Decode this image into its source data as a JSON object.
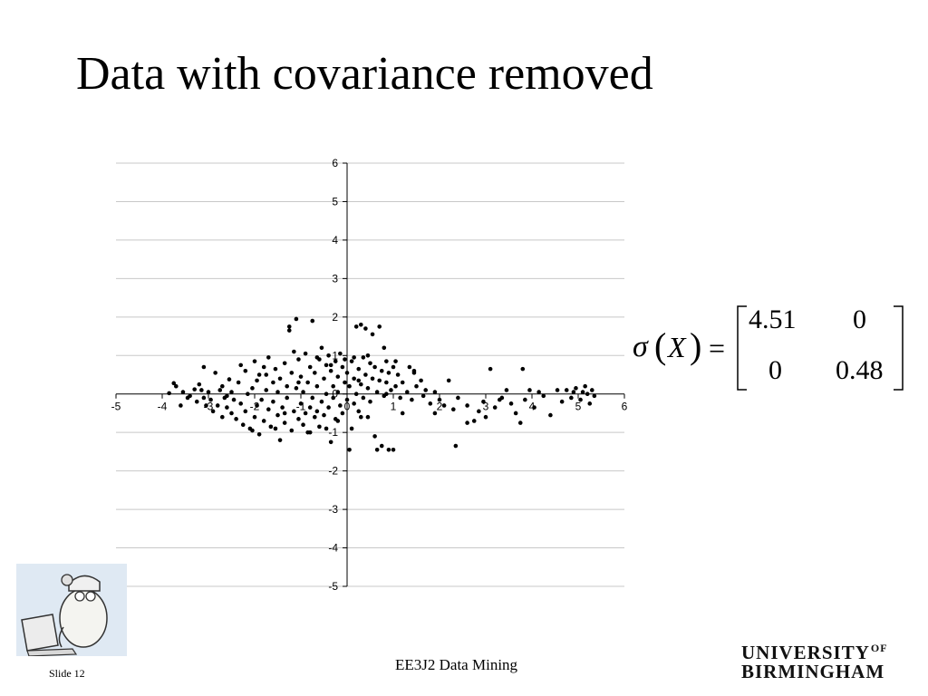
{
  "slide": {
    "title": "Data with covariance removed",
    "footer_center": "EE3J2 Data Mining",
    "slide_number": "Slide 12",
    "logo_line1": "UNIVERSITY",
    "logo_of": "OF",
    "logo_line2": "BIRMINGHAM"
  },
  "equation": {
    "function": "σ",
    "variable": "X",
    "equals": "=",
    "matrix": [
      [
        "4.51",
        "0"
      ],
      [
        "0",
        "0.48"
      ]
    ]
  },
  "chart_data": {
    "type": "scatter",
    "title": "",
    "xlabel": "",
    "ylabel": "",
    "xlim": [
      -5,
      6
    ],
    "ylim": [
      -5,
      6
    ],
    "xticks": [
      -5,
      -4,
      -3,
      -2,
      -1,
      0,
      1,
      2,
      3,
      4,
      5,
      6
    ],
    "yticks": [
      -5,
      -4,
      -3,
      -2,
      -1,
      0,
      1,
      2,
      3,
      4,
      5,
      6
    ],
    "grid": "horizontal",
    "marker_color": "#000000",
    "points": [
      [
        -3.85,
        0.02
      ],
      [
        -3.75,
        0.28
      ],
      [
        -3.7,
        0.2
      ],
      [
        -3.55,
        0.05
      ],
      [
        -3.45,
        -0.1
      ],
      [
        -3.4,
        -0.05
      ],
      [
        -3.3,
        0.12
      ],
      [
        -3.25,
        -0.2
      ],
      [
        -3.2,
        0.25
      ],
      [
        -3.15,
        0.1
      ],
      [
        -3.1,
        -0.1
      ],
      [
        -3.05,
        -0.3
      ],
      [
        -3.0,
        0.05
      ],
      [
        -2.95,
        -0.15
      ],
      [
        -2.9,
        -0.45
      ],
      [
        -2.85,
        0.55
      ],
      [
        -2.8,
        -0.3
      ],
      [
        -2.75,
        0.1
      ],
      [
        -2.7,
        -0.6
      ],
      [
        -2.7,
        0.2
      ],
      [
        -2.65,
        -0.1
      ],
      [
        -2.6,
        -0.35
      ],
      [
        -2.55,
        0.38
      ],
      [
        -2.5,
        -0.5
      ],
      [
        -2.5,
        0.05
      ],
      [
        -2.45,
        -0.15
      ],
      [
        -2.4,
        -0.65
      ],
      [
        -2.35,
        0.3
      ],
      [
        -2.3,
        -0.25
      ],
      [
        -2.25,
        -0.8
      ],
      [
        -2.2,
        0.6
      ],
      [
        -2.2,
        -0.45
      ],
      [
        -2.15,
        0.0
      ],
      [
        -2.1,
        -0.9
      ],
      [
        -2.05,
        0.15
      ],
      [
        -2.0,
        -0.6
      ],
      [
        -2.0,
        0.85
      ],
      [
        -1.95,
        -0.3
      ],
      [
        -1.9,
        0.5
      ],
      [
        -1.9,
        -1.05
      ],
      [
        -1.85,
        -0.15
      ],
      [
        -1.8,
        0.7
      ],
      [
        -1.8,
        -0.7
      ],
      [
        -1.75,
        0.1
      ],
      [
        -1.7,
        -0.4
      ],
      [
        -1.7,
        0.95
      ],
      [
        -1.65,
        -0.85
      ],
      [
        -1.6,
        0.3
      ],
      [
        -1.6,
        -0.2
      ],
      [
        -1.55,
        0.65
      ],
      [
        -1.5,
        -0.55
      ],
      [
        -1.5,
        0.05
      ],
      [
        -1.45,
        -1.2
      ],
      [
        -1.45,
        0.4
      ],
      [
        -1.4,
        -0.35
      ],
      [
        -1.35,
        0.8
      ],
      [
        -1.35,
        -0.75
      ],
      [
        -1.3,
        0.2
      ],
      [
        -1.3,
        -0.1
      ],
      [
        -1.25,
        1.65
      ],
      [
        -1.25,
        1.75
      ],
      [
        -1.2,
        -0.95
      ],
      [
        -1.2,
        0.55
      ],
      [
        -1.15,
        -0.45
      ],
      [
        -1.1,
        1.95
      ],
      [
        -1.1,
        0.15
      ],
      [
        -1.05,
        -0.65
      ],
      [
        -1.05,
        0.9
      ],
      [
        -1.0,
        -0.25
      ],
      [
        -1.0,
        0.45
      ],
      [
        -0.95,
        -0.8
      ],
      [
        -0.95,
        0.05
      ],
      [
        -0.9,
        1.05
      ],
      [
        -0.9,
        -0.5
      ],
      [
        -0.85,
        0.3
      ],
      [
        -0.85,
        -1.0
      ],
      [
        -0.8,
        0.7
      ],
      [
        -0.8,
        -0.35
      ],
      [
        -0.75,
        1.9
      ],
      [
        -0.75,
        -0.1
      ],
      [
        -0.7,
        -0.6
      ],
      [
        -0.7,
        0.55
      ],
      [
        -0.65,
        0.2
      ],
      [
        -0.65,
        -0.45
      ],
      [
        -0.6,
        0.9
      ],
      [
        -0.6,
        -0.85
      ],
      [
        -0.55,
        -0.2
      ],
      [
        -0.55,
        1.2
      ],
      [
        -0.5,
        0.4
      ],
      [
        -0.5,
        -0.55
      ],
      [
        -0.45,
        0.75
      ],
      [
        -0.45,
        0.0
      ],
      [
        -0.4,
        -0.35
      ],
      [
        -0.4,
        1.0
      ],
      [
        -0.35,
        0.6
      ],
      [
        -0.35,
        -1.25
      ],
      [
        -0.3,
        0.2
      ],
      [
        -0.3,
        -0.1
      ],
      [
        -0.25,
        0.85
      ],
      [
        -0.25,
        -0.65
      ],
      [
        -0.2,
        0.45
      ],
      [
        -0.2,
        0.05
      ],
      [
        -0.15,
        1.05
      ],
      [
        -0.15,
        -0.3
      ],
      [
        -0.1,
        0.7
      ],
      [
        -0.1,
        -0.5
      ],
      [
        -0.05,
        0.3
      ],
      [
        -0.05,
        0.9
      ],
      [
        0.0,
        -0.15
      ],
      [
        0.0,
        0.55
      ],
      [
        0.05,
        -1.45
      ],
      [
        0.05,
        0.2
      ],
      [
        0.1,
        0.85
      ],
      [
        0.1,
        -0.9
      ],
      [
        0.15,
        0.4
      ],
      [
        0.15,
        -0.25
      ],
      [
        0.2,
        1.75
      ],
      [
        0.2,
        0.0
      ],
      [
        0.25,
        0.65
      ],
      [
        0.25,
        -0.45
      ],
      [
        0.3,
        1.8
      ],
      [
        0.3,
        0.25
      ],
      [
        0.35,
        -0.1
      ],
      [
        0.35,
        0.95
      ],
      [
        0.4,
        1.7
      ],
      [
        0.4,
        0.5
      ],
      [
        0.45,
        -0.6
      ],
      [
        0.45,
        0.15
      ],
      [
        0.5,
        0.8
      ],
      [
        0.5,
        -0.2
      ],
      [
        0.55,
        1.55
      ],
      [
        0.55,
        0.4
      ],
      [
        0.6,
        -1.1
      ],
      [
        0.6,
        0.7
      ],
      [
        0.65,
        0.05
      ],
      [
        0.65,
        -1.45
      ],
      [
        0.7,
        1.75
      ],
      [
        0.7,
        0.35
      ],
      [
        0.75,
        -1.35
      ],
      [
        0.75,
        0.6
      ],
      [
        0.8,
        1.2
      ],
      [
        0.8,
        -0.05
      ],
      [
        0.85,
        0.85
      ],
      [
        0.85,
        0.3
      ],
      [
        0.9,
        -1.45
      ],
      [
        0.9,
        0.55
      ],
      [
        0.95,
        0.1
      ],
      [
        1.0,
        0.7
      ],
      [
        1.0,
        -1.45
      ],
      [
        1.05,
        0.2
      ],
      [
        1.1,
        0.5
      ],
      [
        1.15,
        -0.1
      ],
      [
        1.2,
        0.3
      ],
      [
        1.3,
        0.05
      ],
      [
        1.35,
        0.7
      ],
      [
        1.4,
        -0.15
      ],
      [
        1.45,
        0.55
      ],
      [
        1.5,
        0.2
      ],
      [
        1.6,
        0.35
      ],
      [
        1.65,
        -0.05
      ],
      [
        1.7,
        0.1
      ],
      [
        1.8,
        -0.25
      ],
      [
        1.9,
        0.05
      ],
      [
        2.0,
        -0.15
      ],
      [
        2.1,
        -0.3
      ],
      [
        2.2,
        0.35
      ],
      [
        2.3,
        -0.4
      ],
      [
        2.35,
        -1.35
      ],
      [
        2.4,
        -0.1
      ],
      [
        2.6,
        -0.3
      ],
      [
        2.75,
        -0.7
      ],
      [
        2.85,
        -0.45
      ],
      [
        2.95,
        -0.2
      ],
      [
        3.0,
        -0.6
      ],
      [
        3.1,
        0.65
      ],
      [
        3.2,
        -0.35
      ],
      [
        3.35,
        -0.1
      ],
      [
        3.45,
        0.1
      ],
      [
        3.55,
        -0.25
      ],
      [
        3.65,
        -0.5
      ],
      [
        3.75,
        -0.75
      ],
      [
        3.8,
        0.65
      ],
      [
        3.85,
        -0.15
      ],
      [
        3.95,
        0.1
      ],
      [
        4.05,
        -0.35
      ],
      [
        4.15,
        0.05
      ],
      [
        4.25,
        -0.05
      ],
      [
        4.4,
        -0.55
      ],
      [
        4.55,
        0.1
      ],
      [
        4.65,
        -0.2
      ],
      [
        4.75,
        0.1
      ],
      [
        4.85,
        -0.1
      ],
      [
        4.95,
        0.15
      ],
      [
        5.05,
        -0.15
      ],
      [
        5.1,
        0.05
      ],
      [
        5.15,
        0.2
      ],
      [
        5.2,
        0.0
      ],
      [
        5.25,
        -0.25
      ],
      [
        5.3,
        0.1
      ],
      [
        5.35,
        -0.05
      ],
      [
        -2.6,
        -0.05
      ],
      [
        -1.95,
        0.35
      ],
      [
        -0.65,
        0.95
      ],
      [
        0.15,
        0.95
      ],
      [
        -3.6,
        -0.3
      ],
      [
        -3.1,
        0.7
      ],
      [
        -2.3,
        0.75
      ],
      [
        -1.55,
        -0.9
      ],
      [
        -1.15,
        1.1
      ],
      [
        -0.45,
        -0.9
      ],
      [
        0.3,
        -0.6
      ],
      [
        1.2,
        -0.5
      ],
      [
        1.9,
        -0.5
      ],
      [
        2.6,
        -0.75
      ],
      [
        3.3,
        -0.15
      ],
      [
        4.9,
        0.05
      ],
      [
        -2.05,
        -0.95
      ],
      [
        -1.35,
        -0.5
      ],
      [
        -0.8,
        -1.0
      ],
      [
        -0.2,
        -0.7
      ],
      [
        0.45,
        1.0
      ],
      [
        1.05,
        0.85
      ],
      [
        -1.75,
        0.5
      ],
      [
        -1.05,
        0.3
      ],
      [
        -0.35,
        0.75
      ],
      [
        0.25,
        0.35
      ],
      [
        0.85,
        0.0
      ],
      [
        1.45,
        0.6
      ]
    ]
  }
}
